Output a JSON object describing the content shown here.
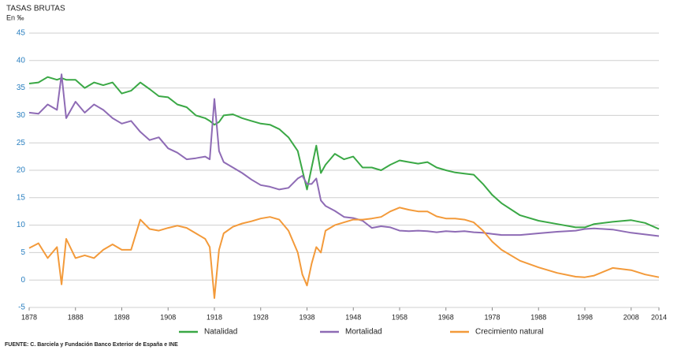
{
  "chart_data": {
    "type": "line",
    "title": "TASAS BRUTAS",
    "subtitle": "En ‰",
    "source": "FUENTE: C. Barciela y Fundación Banco Exterior de España e INE",
    "x": [
      1878,
      1880,
      1882,
      1884,
      1885,
      1886,
      1888,
      1890,
      1892,
      1894,
      1896,
      1898,
      1900,
      1902,
      1904,
      1906,
      1908,
      1910,
      1912,
      1914,
      1916,
      1917,
      1918,
      1919,
      1920,
      1922,
      1924,
      1926,
      1928,
      1930,
      1932,
      1934,
      1936,
      1937,
      1938,
      1939,
      1940,
      1941,
      1942,
      1944,
      1946,
      1948,
      1950,
      1952,
      1954,
      1956,
      1958,
      1960,
      1962,
      1964,
      1966,
      1968,
      1970,
      1972,
      1974,
      1976,
      1978,
      1980,
      1984,
      1988,
      1992,
      1996,
      1998,
      2000,
      2004,
      2008,
      2011,
      2014
    ],
    "series": [
      {
        "name": "Natalidad",
        "color": "#3aa845",
        "values": [
          35.8,
          36,
          37,
          36.5,
          36.8,
          36.5,
          36.5,
          35,
          36,
          35.5,
          36,
          34,
          34.5,
          36,
          34.8,
          33.5,
          33.3,
          32,
          31.5,
          30,
          29.5,
          29,
          28.3,
          28.8,
          30,
          30.2,
          29.5,
          29,
          28.5,
          28.3,
          27.5,
          26,
          23.5,
          20,
          16.5,
          20.5,
          24.5,
          19.5,
          21,
          23,
          22,
          22.5,
          20.5,
          20.5,
          20,
          21,
          21.8,
          21.5,
          21.2,
          21.5,
          20.5,
          20,
          19.6,
          19.4,
          19.2,
          17.5,
          15.5,
          14,
          11.8,
          10.8,
          10.2,
          9.6,
          9.6,
          10.2,
          10.6,
          10.9,
          10.4,
          9.3
        ]
      },
      {
        "name": "Mortalidad",
        "color": "#8e6bb5",
        "values": [
          30.5,
          30.3,
          32,
          31,
          37.5,
          29.5,
          32.5,
          30.5,
          32,
          31,
          29.5,
          28.5,
          29,
          27,
          25.5,
          26,
          24,
          23.2,
          22,
          22.2,
          22.5,
          22,
          33,
          23.5,
          21.5,
          20.5,
          19.5,
          18.3,
          17.3,
          17,
          16.5,
          16.8,
          18.5,
          19,
          17.5,
          17.5,
          18.5,
          14.5,
          13.5,
          12.6,
          11.5,
          11.3,
          10.8,
          9.5,
          9.8,
          9.6,
          9,
          8.9,
          9,
          8.9,
          8.7,
          8.9,
          8.8,
          8.9,
          8.7,
          8.6,
          8.4,
          8.2,
          8.2,
          8.5,
          8.8,
          9,
          9.3,
          9.4,
          9.2,
          8.6,
          8.3,
          8
        ]
      },
      {
        "name": "Crecimiento natural",
        "color": "#f39a3a",
        "values": [
          5.8,
          6.7,
          4,
          6,
          -0.8,
          7.5,
          4,
          4.5,
          4,
          5.5,
          6.5,
          5.5,
          5.5,
          11,
          9.3,
          9,
          9.5,
          9.9,
          9.5,
          8.5,
          7.5,
          6,
          -3.3,
          5.5,
          8.5,
          9.7,
          10.3,
          10.7,
          11.2,
          11.5,
          11,
          9,
          5,
          1,
          -1,
          3,
          6,
          5,
          9,
          10,
          10.5,
          11,
          11,
          11.2,
          11.5,
          12.5,
          13.2,
          12.8,
          12.5,
          12.5,
          11.6,
          11.2,
          11.2,
          11,
          10.5,
          9,
          7,
          5.5,
          3.5,
          2.3,
          1.3,
          0.6,
          0.5,
          0.8,
          2.2,
          1.8,
          1,
          0.5
        ]
      }
    ],
    "xlim": [
      1878,
      2014
    ],
    "xticks": [
      1878,
      1888,
      1898,
      1908,
      1918,
      1928,
      1938,
      1948,
      1958,
      1968,
      1978,
      1988,
      1998,
      2008,
      2014
    ],
    "ylim": [
      -5,
      45
    ],
    "yticks": [
      -5,
      0,
      5,
      10,
      15,
      20,
      25,
      30,
      35,
      40,
      45
    ],
    "grid": true
  }
}
